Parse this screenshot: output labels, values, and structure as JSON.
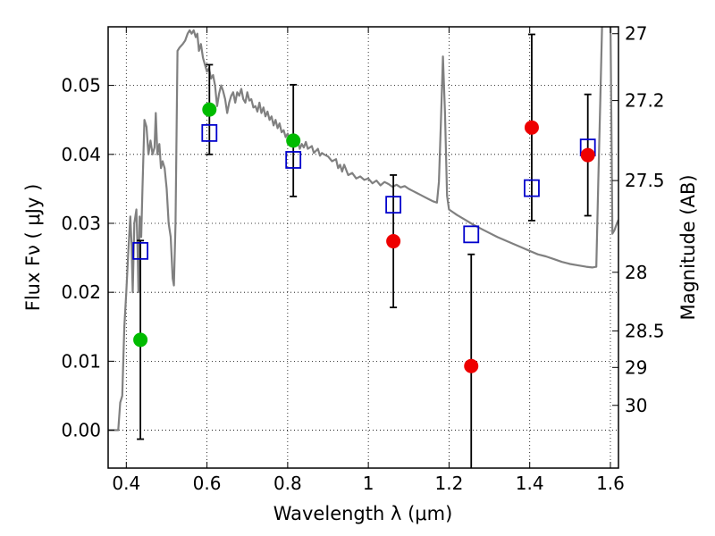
{
  "chart_data": {
    "type": "scatter",
    "xlabel": "Wavelength  λ (μm)",
    "ylabel": "Flux  Fν  ( μJy )",
    "ylabel_right": "Magnitude (AB)",
    "xlim": [
      0.355,
      1.62
    ],
    "ylim": [
      -0.0055,
      0.0585
    ],
    "grid": true,
    "x_ticks": [
      0.4,
      0.6,
      0.8,
      1.0,
      1.2,
      1.4,
      1.6
    ],
    "x_tick_labels": [
      "0.4",
      "0.6",
      "0.8",
      "1",
      "1.2",
      "1.4",
      "1.6"
    ],
    "y_ticks": [
      0.0,
      0.01,
      0.02,
      0.03,
      0.04,
      0.05
    ],
    "y_tick_labels": [
      "0.00",
      "0.01",
      "0.02",
      "0.03",
      "0.04",
      "0.05"
    ],
    "right_ticks": [
      {
        "label": "27",
        "flux": 0.0575
      },
      {
        "label": "27.2",
        "flux": 0.0478
      },
      {
        "label": "27.5",
        "flux": 0.0362
      },
      {
        "label": "28",
        "flux": 0.0229
      },
      {
        "label": "28.5",
        "flux": 0.0144
      },
      {
        "label": "29",
        "flux": 0.0091
      },
      {
        "label": "30",
        "flux": 0.0036
      }
    ],
    "series": [
      {
        "marker": "circle",
        "color": "#00bb00",
        "points": [
          {
            "x": 0.435,
            "y": 0.0131,
            "err": 0.0144
          },
          {
            "x": 0.606,
            "y": 0.0465,
            "err": 0.0065
          },
          {
            "x": 0.814,
            "y": 0.042,
            "err": 0.0081
          }
        ]
      },
      {
        "marker": "circle",
        "color": "#ee0000",
        "points": [
          {
            "x": 1.062,
            "y": 0.0274,
            "err": 0.0096
          },
          {
            "x": 1.255,
            "y": 0.0093,
            "err": 0.0162
          },
          {
            "x": 1.405,
            "y": 0.0439,
            "err": 0.0135
          },
          {
            "x": 1.544,
            "y": 0.0399,
            "err": 0.0088
          }
        ]
      },
      {
        "marker": "square",
        "color": "#0000cc",
        "points": [
          {
            "x": 0.435,
            "y": 0.026
          },
          {
            "x": 0.606,
            "y": 0.0431
          },
          {
            "x": 0.814,
            "y": 0.0392
          },
          {
            "x": 1.062,
            "y": 0.0327
          },
          {
            "x": 1.255,
            "y": 0.0284
          },
          {
            "x": 1.405,
            "y": 0.0351
          },
          {
            "x": 1.544,
            "y": 0.041
          }
        ]
      },
      {
        "type": "line",
        "color": "#808080",
        "points": [
          [
            0.355,
            0.0
          ],
          [
            0.38,
            0.0
          ],
          [
            0.385,
            0.004
          ],
          [
            0.39,
            0.005
          ],
          [
            0.395,
            0.015
          ],
          [
            0.4,
            0.02
          ],
          [
            0.405,
            0.026
          ],
          [
            0.41,
            0.031
          ],
          [
            0.413,
            0.027
          ],
          [
            0.416,
            0.02
          ],
          [
            0.42,
            0.03
          ],
          [
            0.425,
            0.032
          ],
          [
            0.428,
            0.026
          ],
          [
            0.43,
            0.02
          ],
          [
            0.433,
            0.031
          ],
          [
            0.437,
            0.028
          ],
          [
            0.44,
            0.035
          ],
          [
            0.445,
            0.045
          ],
          [
            0.45,
            0.044
          ],
          [
            0.455,
            0.04
          ],
          [
            0.46,
            0.042
          ],
          [
            0.465,
            0.04
          ],
          [
            0.47,
            0.041
          ],
          [
            0.473,
            0.046
          ],
          [
            0.477,
            0.04
          ],
          [
            0.482,
            0.0415
          ],
          [
            0.486,
            0.038
          ],
          [
            0.49,
            0.039
          ],
          [
            0.495,
            0.038
          ],
          [
            0.5,
            0.035
          ],
          [
            0.505,
            0.03
          ],
          [
            0.51,
            0.028
          ],
          [
            0.515,
            0.022
          ],
          [
            0.518,
            0.021
          ],
          [
            0.522,
            0.03
          ],
          [
            0.527,
            0.055
          ],
          [
            0.532,
            0.0555
          ],
          [
            0.54,
            0.056
          ],
          [
            0.546,
            0.0565
          ],
          [
            0.552,
            0.0575
          ],
          [
            0.557,
            0.058
          ],
          [
            0.562,
            0.0575
          ],
          [
            0.567,
            0.058
          ],
          [
            0.572,
            0.057
          ],
          [
            0.576,
            0.0575
          ],
          [
            0.58,
            0.055
          ],
          [
            0.585,
            0.056
          ],
          [
            0.59,
            0.054
          ],
          [
            0.595,
            0.053
          ],
          [
            0.6,
            0.052
          ],
          [
            0.605,
            0.0525
          ],
          [
            0.61,
            0.051
          ],
          [
            0.615,
            0.0515
          ],
          [
            0.62,
            0.05
          ],
          [
            0.625,
            0.047
          ],
          [
            0.63,
            0.0488
          ],
          [
            0.635,
            0.05
          ],
          [
            0.64,
            0.0492
          ],
          [
            0.645,
            0.048
          ],
          [
            0.65,
            0.046
          ],
          [
            0.655,
            0.0475
          ],
          [
            0.66,
            0.0485
          ],
          [
            0.665,
            0.049
          ],
          [
            0.67,
            0.0475
          ],
          [
            0.675,
            0.049
          ],
          [
            0.68,
            0.0485
          ],
          [
            0.685,
            0.0495
          ],
          [
            0.69,
            0.048
          ],
          [
            0.695,
            0.0475
          ],
          [
            0.7,
            0.049
          ],
          [
            0.705,
            0.0478
          ],
          [
            0.71,
            0.048
          ],
          [
            0.715,
            0.0468
          ],
          [
            0.72,
            0.047
          ],
          [
            0.725,
            0.0462
          ],
          [
            0.73,
            0.0475
          ],
          [
            0.735,
            0.046
          ],
          [
            0.74,
            0.0468
          ],
          [
            0.745,
            0.0455
          ],
          [
            0.75,
            0.0462
          ],
          [
            0.755,
            0.045
          ],
          [
            0.76,
            0.0455
          ],
          [
            0.765,
            0.0442
          ],
          [
            0.77,
            0.045
          ],
          [
            0.775,
            0.0438
          ],
          [
            0.78,
            0.0445
          ],
          [
            0.785,
            0.0432
          ],
          [
            0.79,
            0.0435
          ],
          [
            0.795,
            0.0425
          ],
          [
            0.8,
            0.043
          ],
          [
            0.805,
            0.0422
          ],
          [
            0.81,
            0.0428
          ],
          [
            0.815,
            0.042
          ],
          [
            0.82,
            0.0418
          ],
          [
            0.825,
            0.042
          ],
          [
            0.83,
            0.0408
          ],
          [
            0.835,
            0.0415
          ],
          [
            0.84,
            0.041
          ],
          [
            0.845,
            0.0418
          ],
          [
            0.85,
            0.0408
          ],
          [
            0.855,
            0.041
          ],
          [
            0.86,
            0.0412
          ],
          [
            0.865,
            0.0402
          ],
          [
            0.87,
            0.0405
          ],
          [
            0.875,
            0.0408
          ],
          [
            0.88,
            0.0398
          ],
          [
            0.885,
            0.0402
          ],
          [
            0.89,
            0.04
          ],
          [
            0.9,
            0.0397
          ],
          [
            0.91,
            0.039
          ],
          [
            0.92,
            0.0393
          ],
          [
            0.925,
            0.038
          ],
          [
            0.93,
            0.0385
          ],
          [
            0.935,
            0.0375
          ],
          [
            0.94,
            0.0385
          ],
          [
            0.95,
            0.037
          ],
          [
            0.96,
            0.0373
          ],
          [
            0.97,
            0.0365
          ],
          [
            0.98,
            0.0368
          ],
          [
            0.99,
            0.0363
          ],
          [
            1.0,
            0.0365
          ],
          [
            1.01,
            0.0358
          ],
          [
            1.02,
            0.0362
          ],
          [
            1.03,
            0.0355
          ],
          [
            1.04,
            0.036
          ],
          [
            1.05,
            0.0357
          ],
          [
            1.06,
            0.0353
          ],
          [
            1.07,
            0.0356
          ],
          [
            1.08,
            0.0352
          ],
          [
            1.09,
            0.0354
          ],
          [
            1.1,
            0.035
          ],
          [
            1.11,
            0.0347
          ],
          [
            1.12,
            0.0344
          ],
          [
            1.13,
            0.0341
          ],
          [
            1.14,
            0.0338
          ],
          [
            1.15,
            0.0335
          ],
          [
            1.16,
            0.0332
          ],
          [
            1.17,
            0.033
          ],
          [
            1.175,
            0.036
          ],
          [
            1.18,
            0.045
          ],
          [
            1.185,
            0.0542
          ],
          [
            1.19,
            0.046
          ],
          [
            1.195,
            0.034
          ],
          [
            1.2,
            0.032
          ],
          [
            1.22,
            0.0312
          ],
          [
            1.24,
            0.0305
          ],
          [
            1.26,
            0.0298
          ],
          [
            1.28,
            0.0292
          ],
          [
            1.3,
            0.0286
          ],
          [
            1.32,
            0.028
          ],
          [
            1.34,
            0.0275
          ],
          [
            1.36,
            0.027
          ],
          [
            1.38,
            0.0265
          ],
          [
            1.4,
            0.026
          ],
          [
            1.42,
            0.0255
          ],
          [
            1.44,
            0.0252
          ],
          [
            1.46,
            0.0248
          ],
          [
            1.48,
            0.0244
          ],
          [
            1.5,
            0.0241
          ],
          [
            1.52,
            0.0239
          ],
          [
            1.54,
            0.0237
          ],
          [
            1.555,
            0.0236
          ],
          [
            1.565,
            0.0237
          ],
          [
            1.57,
            0.036
          ],
          [
            1.575,
            0.048
          ],
          [
            1.58,
            0.06
          ],
          [
            1.6,
            0.06
          ],
          [
            1.605,
            0.0285
          ],
          [
            1.61,
            0.029
          ],
          [
            1.615,
            0.0298
          ],
          [
            1.62,
            0.0305
          ]
        ]
      }
    ]
  }
}
